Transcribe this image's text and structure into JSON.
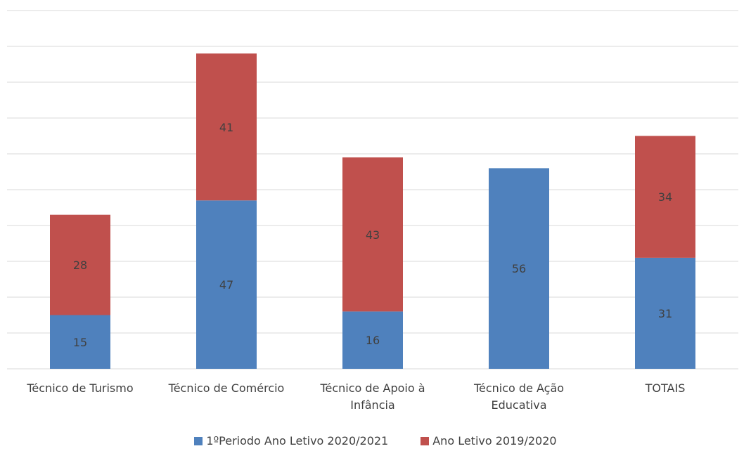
{
  "chart_data": {
    "type": "bar",
    "stacked": true,
    "categories": [
      "Técnico de Turismo",
      "Técnico de Comércio",
      "Técnico de Apoio à\nInfância",
      "Técnico de Ação\nEducativa",
      "TOTAIS"
    ],
    "series": [
      {
        "name": "1ºPeriodo Ano Letivo 2020/2021",
        "color": "#4f81bd",
        "values": [
          15,
          47,
          16,
          56,
          31
        ]
      },
      {
        "name": "Ano Letivo 2019/2020",
        "color": "#c0504d",
        "values": [
          28,
          41,
          43,
          0,
          34
        ]
      }
    ],
    "data_labels": [
      [
        "15",
        "47",
        "16",
        "56",
        "31"
      ],
      [
        "28",
        "41",
        "43",
        "",
        "34"
      ]
    ],
    "title": "",
    "xlabel": "",
    "ylabel": "",
    "ylim": [
      0,
      100
    ],
    "grid": true,
    "legend": "bottom"
  }
}
